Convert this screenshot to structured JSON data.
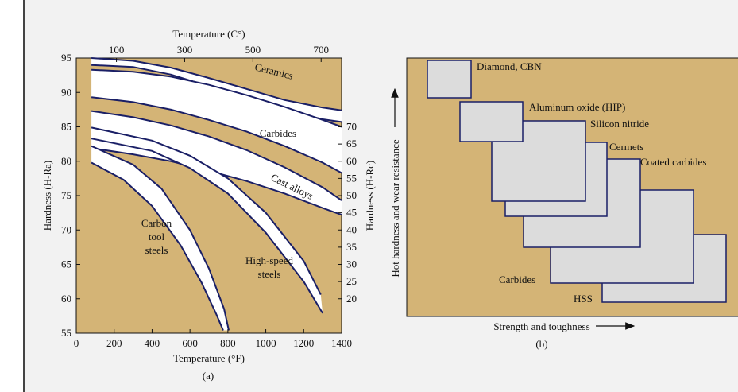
{
  "chart_data": [
    {
      "id": "a",
      "type": "line",
      "caption": "(a)",
      "xlabel_bottom": "Temperature (°F)",
      "xlabel_top": "Temperature (C°)",
      "ylabel_left": "Hardness (H-Ra)",
      "ylabel_right": "Hardness (H-Rc)",
      "xlim": [
        0,
        1400
      ],
      "ylim": [
        55,
        95
      ],
      "x_ticks": [
        "0",
        "200",
        "400",
        "600",
        "800",
        "1000",
        "1200",
        "1400"
      ],
      "x_tick_values": [
        0,
        200,
        400,
        600,
        800,
        1000,
        1200,
        1400
      ],
      "top_ticks": [
        "100",
        "300",
        "500",
        "700"
      ],
      "top_tick_values": [
        212,
        572,
        932,
        1292
      ],
      "y_ticks": [
        "55",
        "60",
        "65",
        "70",
        "75",
        "80",
        "85",
        "90",
        "95"
      ],
      "y_tick_values": [
        55,
        60,
        65,
        70,
        75,
        80,
        85,
        90,
        95
      ],
      "right_ticks": [
        "20",
        "25",
        "30",
        "35",
        "40",
        "45",
        "50",
        "55",
        "60",
        "65",
        "70"
      ],
      "right_tick_values": [
        60,
        62.5,
        65,
        67.5,
        70,
        72.5,
        75,
        77.5,
        80,
        82.5,
        85
      ],
      "grid": false,
      "colors": {
        "panel": "#d4b476",
        "band": "#ffffff",
        "line": "#1a1f66",
        "axis": "#111111"
      },
      "series": [
        {
          "name": "Ceramics",
          "upper": [
            [
              80,
              95
            ],
            [
              300,
              94.6
            ],
            [
              500,
              93.6
            ],
            [
              700,
              92.1
            ],
            [
              900,
              90.5
            ],
            [
              1100,
              88.9
            ],
            [
              1300,
              87.8
            ],
            [
              1400,
              87.4
            ]
          ],
          "lower": [
            [
              80,
              94
            ],
            [
              300,
              93.7
            ],
            [
              500,
              92.6
            ],
            [
              700,
              90.9
            ],
            [
              900,
              89
            ],
            [
              1100,
              87.4
            ],
            [
              1300,
              86.1
            ],
            [
              1400,
              85.7
            ]
          ]
        },
        {
          "name": "Carbides",
          "upper": [
            [
              80,
              93.3
            ],
            [
              300,
              93
            ],
            [
              500,
              92.3
            ],
            [
              700,
              91.1
            ],
            [
              900,
              89.6
            ],
            [
              1100,
              87.9
            ],
            [
              1300,
              86
            ],
            [
              1400,
              85
            ]
          ],
          "lower": [
            [
              80,
              89.3
            ],
            [
              300,
              88.6
            ],
            [
              500,
              87.5
            ],
            [
              700,
              86
            ],
            [
              900,
              84.3
            ],
            [
              1100,
              82.2
            ],
            [
              1300,
              79.8
            ],
            [
              1400,
              78.3
            ]
          ]
        },
        {
          "name": "Cast alloys",
          "upper": [
            [
              80,
              87.3
            ],
            [
              300,
              86.4
            ],
            [
              500,
              85.2
            ],
            [
              700,
              83.6
            ],
            [
              900,
              81.6
            ],
            [
              1100,
              79.1
            ],
            [
              1300,
              76.2
            ],
            [
              1400,
              74.3
            ]
          ],
          "lower": [
            [
              80,
              81.9
            ],
            [
              300,
              81
            ],
            [
              500,
              80
            ],
            [
              700,
              78.6
            ],
            [
              900,
              77.1
            ],
            [
              1100,
              75.3
            ],
            [
              1300,
              73.2
            ],
            [
              1400,
              72.2
            ]
          ]
        },
        {
          "name": "High-speed steels",
          "upper": [
            [
              80,
              84.9
            ],
            [
              400,
              83
            ],
            [
              600,
              80.8
            ],
            [
              800,
              77.5
            ],
            [
              1000,
              72.5
            ],
            [
              1200,
              65.5
            ],
            [
              1290,
              60.6
            ]
          ],
          "lower": [
            [
              80,
              83.3
            ],
            [
              400,
              81.5
            ],
            [
              600,
              79
            ],
            [
              800,
              75.3
            ],
            [
              1000,
              69.6
            ],
            [
              1200,
              62.5
            ],
            [
              1300,
              57.9
            ]
          ]
        },
        {
          "name": "Carbon tool steels",
          "upper": [
            [
              80,
              82.2
            ],
            [
              300,
              79.5
            ],
            [
              450,
              76
            ],
            [
              600,
              70
            ],
            [
              700,
              64.4
            ],
            [
              780,
              58.5
            ],
            [
              805,
              55.4
            ]
          ],
          "lower": [
            [
              80,
              79.8
            ],
            [
              250,
              77.3
            ],
            [
              400,
              73.5
            ],
            [
              550,
              67.8
            ],
            [
              660,
              62.4
            ],
            [
              740,
              57.7
            ],
            [
              775,
              55.4
            ]
          ]
        }
      ],
      "labels": {
        "ceramics": "Ceramics",
        "carbides": "Carbides",
        "cast_alloys": "Cast alloys",
        "carbon_l1": "Carbon",
        "carbon_l2": "tool",
        "carbon_l3": "steels",
        "hss_l1": "High-speed",
        "hss_l2": "steels"
      }
    },
    {
      "id": "b",
      "type": "diagram",
      "caption": "(b)",
      "xlabel": "Strength and toughness",
      "ylabel": "Hot hardness and wear resistance",
      "colors": {
        "panel": "#d4b476",
        "box": "#dcdcdc",
        "line": "#1a1f66"
      },
      "materials": [
        "Diamond, CBN",
        "Aluminum oxide (HIP)",
        "Silicon nitride",
        "Cermets",
        "Coated carbides",
        "Carbides",
        "HSS"
      ]
    }
  ]
}
